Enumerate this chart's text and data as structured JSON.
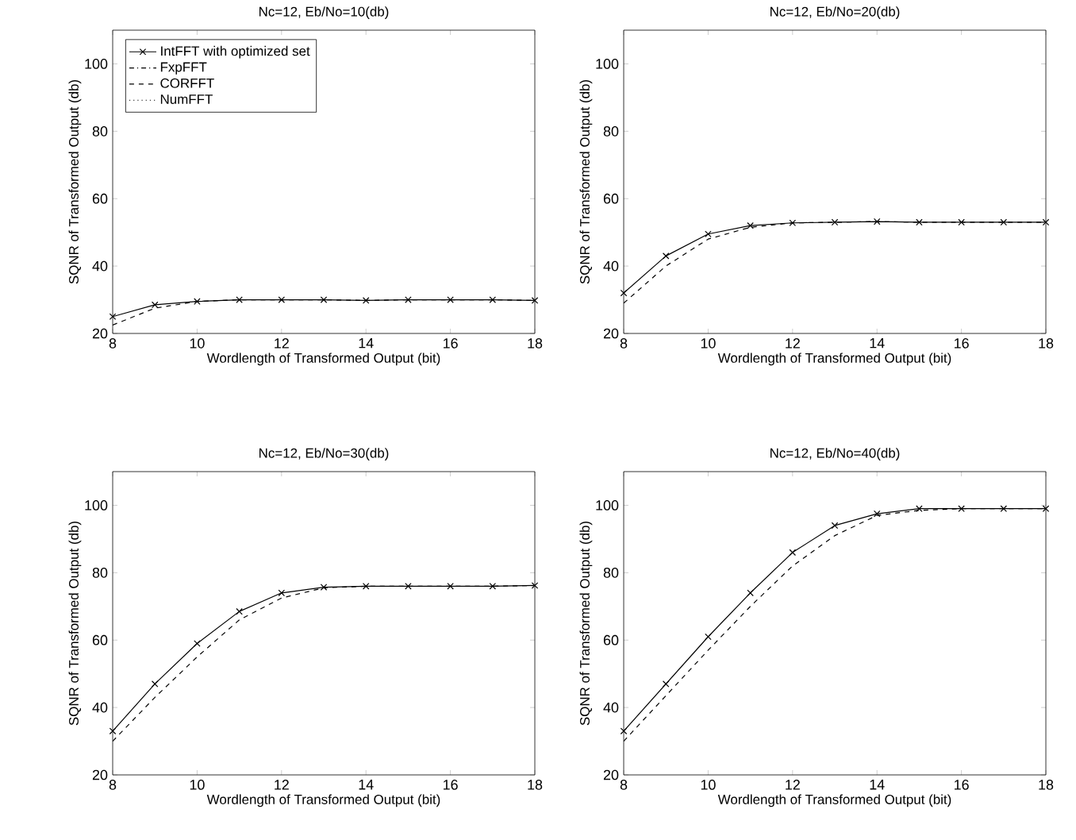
{
  "chart_data": [
    {
      "type": "line",
      "title": "Nc=12, Eb/No=10(db)",
      "xlabel": "Wordlength of Transformed Output (bit)",
      "ylabel": "SQNR of Transformed Output (db)",
      "x": [
        8,
        9,
        10,
        11,
        12,
        13,
        14,
        15,
        16,
        17,
        18
      ],
      "xlim": [
        8,
        18
      ],
      "xticks": [
        8,
        10,
        12,
        14,
        16,
        18
      ],
      "ylim": [
        20,
        110
      ],
      "yticks": [
        20,
        40,
        60,
        80,
        100
      ],
      "legend": "top left",
      "series": [
        {
          "name": "IntFFT with optimized set",
          "color": "#000000",
          "marker": "cross",
          "line_style": "solid",
          "values": [
            25,
            28.5,
            29.5,
            30,
            30,
            30,
            29.8,
            30,
            30,
            30,
            29.8
          ]
        },
        {
          "name": "FxpFFT",
          "color": "#000000",
          "marker": "none",
          "line_style": "dashdot",
          "values": [
            null,
            null,
            null,
            null,
            null,
            null,
            null,
            null,
            null,
            null,
            null
          ]
        },
        {
          "name": "CORFFT",
          "color": "#000000",
          "marker": "none",
          "line_style": "dashed",
          "values": [
            22.5,
            27.5,
            29.5,
            30,
            30,
            30,
            29.8,
            30,
            30,
            30,
            29.8
          ]
        },
        {
          "name": "NumFFT",
          "color": "#000000",
          "marker": "none",
          "line_style": "dotted",
          "values": [
            null,
            null,
            null,
            null,
            null,
            null,
            null,
            null,
            null,
            null,
            null
          ]
        }
      ]
    },
    {
      "type": "line",
      "title": "Nc=12, Eb/No=20(db)",
      "xlabel": "Wordlength of Transformed Output (bit)",
      "ylabel": "SQNR of Transformed Output (db)",
      "x": [
        8,
        9,
        10,
        11,
        12,
        13,
        14,
        15,
        16,
        17,
        18
      ],
      "xlim": [
        8,
        18
      ],
      "xticks": [
        8,
        10,
        12,
        14,
        16,
        18
      ],
      "ylim": [
        20,
        110
      ],
      "yticks": [
        20,
        40,
        60,
        80,
        100
      ],
      "series": [
        {
          "color": "#000000",
          "marker": "cross",
          "line_style": "solid",
          "values": [
            32,
            43,
            49.5,
            52,
            52.8,
            53,
            53.2,
            53,
            53,
            53,
            53
          ]
        },
        {
          "color": "#000000",
          "marker": "none",
          "line_style": "dashed",
          "values": [
            29,
            40,
            48,
            51.5,
            52.8,
            53,
            53.2,
            53,
            53,
            53,
            53
          ]
        }
      ]
    },
    {
      "type": "line",
      "title": "Nc=12, Eb/No=30(db)",
      "xlabel": "Wordlength of Transformed Output (bit)",
      "ylabel": "SQNR of Transformed Output (db)",
      "x": [
        8,
        9,
        10,
        11,
        12,
        13,
        14,
        15,
        16,
        17,
        18
      ],
      "xlim": [
        8,
        18
      ],
      "xticks": [
        8,
        10,
        12,
        14,
        16,
        18
      ],
      "ylim": [
        20,
        110
      ],
      "yticks": [
        20,
        40,
        60,
        80,
        100
      ],
      "series": [
        {
          "color": "#000000",
          "marker": "cross",
          "line_style": "solid",
          "values": [
            33,
            47,
            59,
            68.5,
            74,
            75.7,
            76,
            76,
            76,
            76,
            76.2
          ]
        },
        {
          "color": "#000000",
          "marker": "none",
          "line_style": "dashed",
          "values": [
            30,
            43,
            55,
            66,
            72.5,
            75.5,
            76,
            76,
            76,
            76,
            76.2
          ]
        }
      ]
    },
    {
      "type": "line",
      "title": "Nc=12, Eb/No=40(db)",
      "xlabel": "Wordlength of Transformed Output (bit)",
      "ylabel": "SQNR of Transformed Output (db)",
      "x": [
        8,
        9,
        10,
        11,
        12,
        13,
        14,
        15,
        16,
        17,
        18
      ],
      "xlim": [
        8,
        18
      ],
      "xticks": [
        8,
        10,
        12,
        14,
        16,
        18
      ],
      "ylim": [
        20,
        110
      ],
      "yticks": [
        20,
        40,
        60,
        80,
        100
      ],
      "series": [
        {
          "color": "#000000",
          "marker": "cross",
          "line_style": "solid",
          "values": [
            33,
            47,
            61,
            74,
            86,
            94,
            97.5,
            99,
            99,
            99,
            99
          ]
        },
        {
          "color": "#000000",
          "marker": "none",
          "line_style": "dashed",
          "values": [
            30,
            43.5,
            57,
            70,
            82,
            91,
            97,
            98.5,
            99,
            99,
            99
          ]
        }
      ]
    }
  ]
}
